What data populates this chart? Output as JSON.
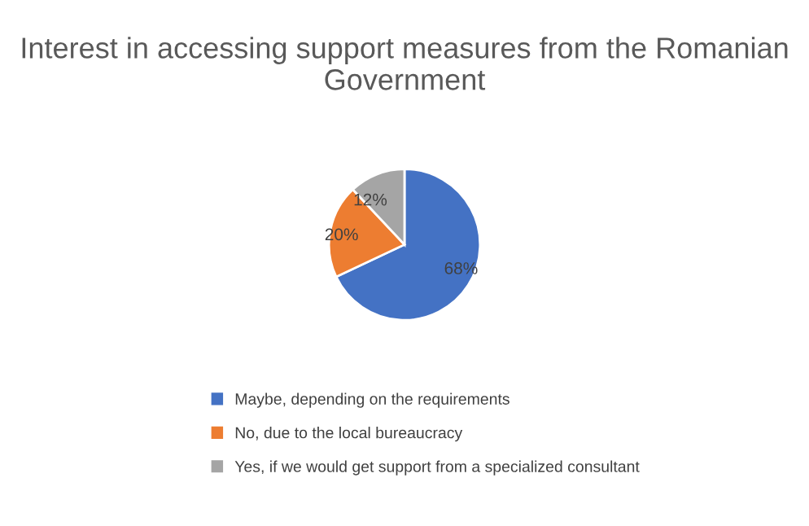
{
  "chart_data": {
    "type": "pie",
    "title": "Interest in accessing support measures from the Romanian Government",
    "categories": [
      "Maybe, depending on the requirements",
      "No, due to the local bureaucracy",
      "Yes, if we would get support from a specialized consultant"
    ],
    "values": [
      68,
      20,
      12
    ],
    "colors": [
      "#4472c4",
      "#ed7d31",
      "#a5a5a5"
    ],
    "value_labels": [
      "68%",
      "20%",
      "12%"
    ],
    "legend": "bottom"
  }
}
